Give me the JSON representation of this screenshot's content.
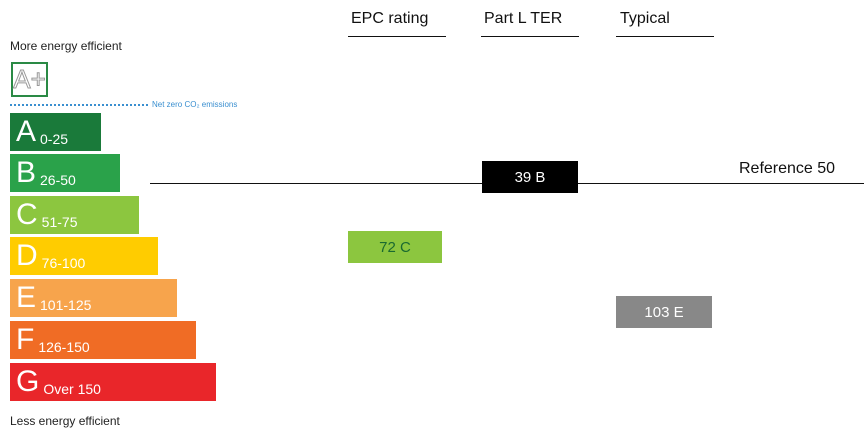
{
  "header": {
    "columns": [
      "EPC rating",
      "Part L TER",
      "Typical"
    ]
  },
  "scale": {
    "top_label": "More energy efficient",
    "bottom_label": "Less energy efficient",
    "a_plus": "A+",
    "net_zero": "Net zero CO₂ emissions",
    "bands": [
      {
        "letter": "A",
        "range": "0-25"
      },
      {
        "letter": "B",
        "range": "26-50"
      },
      {
        "letter": "C",
        "range": "51-75"
      },
      {
        "letter": "D",
        "range": "76-100"
      },
      {
        "letter": "E",
        "range": "101-125"
      },
      {
        "letter": "F",
        "range": "126-150"
      },
      {
        "letter": "G",
        "range": "Over 150"
      }
    ]
  },
  "reference": "Reference 50",
  "ratings": [
    "72 C",
    "39 B",
    "103 E"
  ]
}
